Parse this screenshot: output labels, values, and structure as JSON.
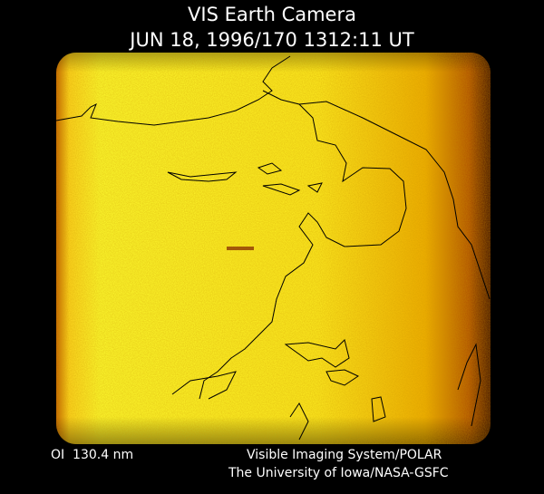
{
  "header": {
    "title": "VIS Earth Camera",
    "subtitle": "JUN 18, 1996/170 1312:11 UT"
  },
  "footer": {
    "filter": "OI  130.4 nm",
    "system": "Visible Imaging System/POLAR",
    "institution": "The University of Iowa/NASA-GSFC"
  }
}
